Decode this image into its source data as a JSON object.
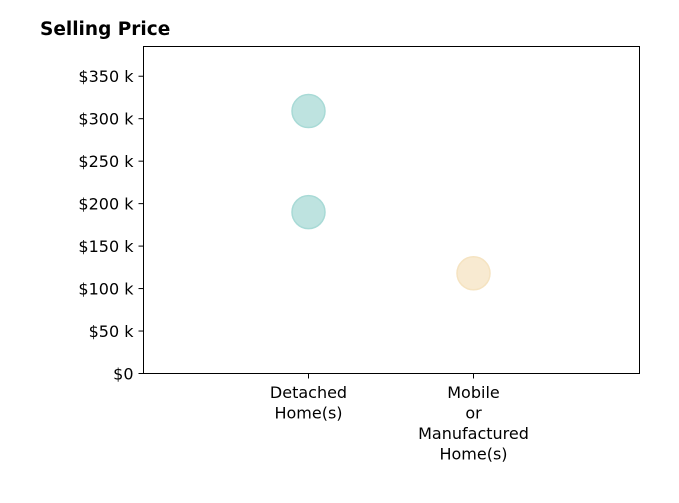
{
  "chart_data": {
    "type": "scatter",
    "title": "Selling Price",
    "xlabel": "",
    "ylabel": "",
    "categories": [
      "Detached Home(s)",
      "Mobile or Manufactured Home(s)"
    ],
    "category_lines": [
      [
        "Detached",
        "Home(s)"
      ],
      [
        "Mobile",
        "or",
        "Manufactured",
        "Home(s)"
      ]
    ],
    "ylim": [
      0,
      385000
    ],
    "yticks": [
      {
        "value": 0,
        "label": "$0"
      },
      {
        "value": 50000,
        "label": "$50 k"
      },
      {
        "value": 100000,
        "label": "$100 k"
      },
      {
        "value": 150000,
        "label": "$150 k"
      },
      {
        "value": 200000,
        "label": "$200 k"
      },
      {
        "value": 250000,
        "label": "$250 k"
      },
      {
        "value": 300000,
        "label": "$300 k"
      },
      {
        "value": 350000,
        "label": "$350 k"
      }
    ],
    "points": [
      {
        "category": "Detached Home(s)",
        "y": 309000,
        "color": "#a8dad6"
      },
      {
        "category": "Detached Home(s)",
        "y": 190000,
        "color": "#a8dad6"
      },
      {
        "category": "Mobile or Manufactured Home(s)",
        "y": 118000,
        "color": "#f5e3c1"
      }
    ],
    "grid": false,
    "legend": "none"
  }
}
